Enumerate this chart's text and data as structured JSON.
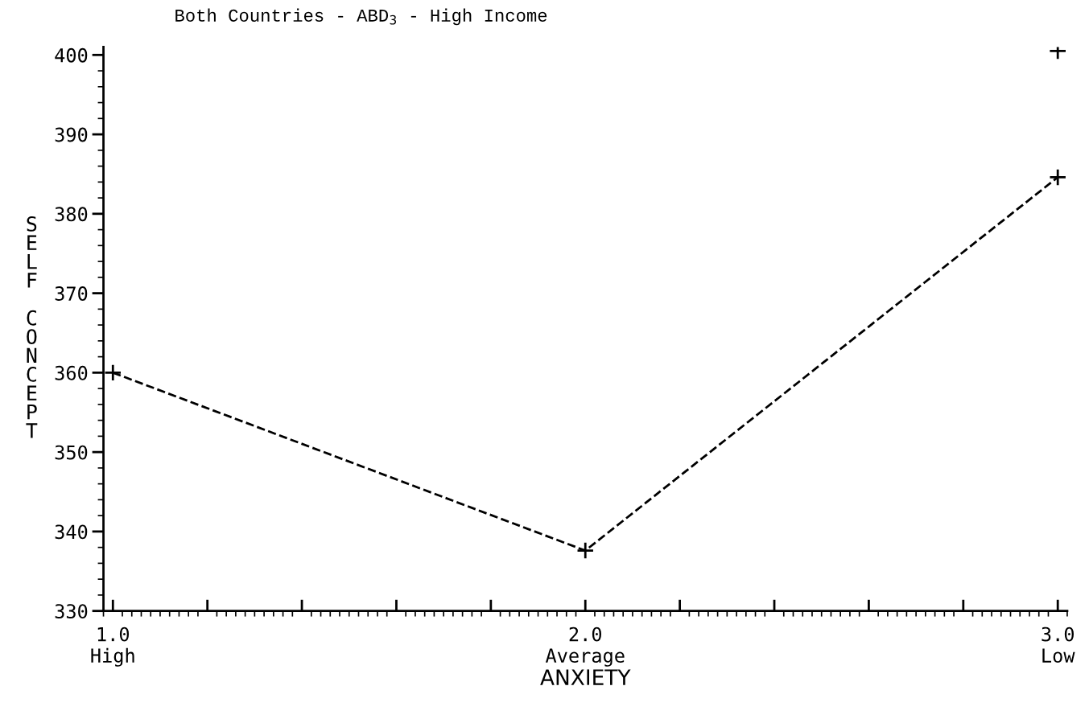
{
  "chart_data": {
    "type": "line",
    "title": "Both Countries - ABD$_{3}$ - High Income",
    "xlabel": "ANXIETY",
    "ylabel": "SELF CONCEPT",
    "series": [
      {
        "color": "#000000",
        "x": [
          1,
          2,
          3
        ],
        "values": [
          360,
          337.6,
          384.6
        ],
        "marker": "cross",
        "line_style": "dashed"
      },
      {
        "type": "scatter",
        "color": "#000000",
        "x": [
          3
        ],
        "values": [
          400.5
        ],
        "marker": "cross"
      }
    ],
    "xlim": [
      0.98,
      3.02
    ],
    "ylim": [
      330,
      401
    ],
    "xticks": [
      {
        "value": 1,
        "label": "1.0\nHigh"
      },
      {
        "value": 1.2,
        "label": null
      },
      {
        "value": 1.4,
        "label": null
      },
      {
        "value": 1.6,
        "label": null
      },
      {
        "value": 1.8,
        "label": null
      },
      {
        "value": 2,
        "label": "2.0\nAverage"
      },
      {
        "value": 2.2,
        "label": null
      },
      {
        "value": 2.4,
        "label": null
      },
      {
        "value": 2.6,
        "label": null
      },
      {
        "value": 2.8,
        "label": null
      },
      {
        "value": 3,
        "label": "3.0\nLow"
      }
    ],
    "yticks": [
      330,
      340,
      350,
      360,
      370,
      380,
      390,
      400
    ],
    "grid": false,
    "legend": false
  }
}
